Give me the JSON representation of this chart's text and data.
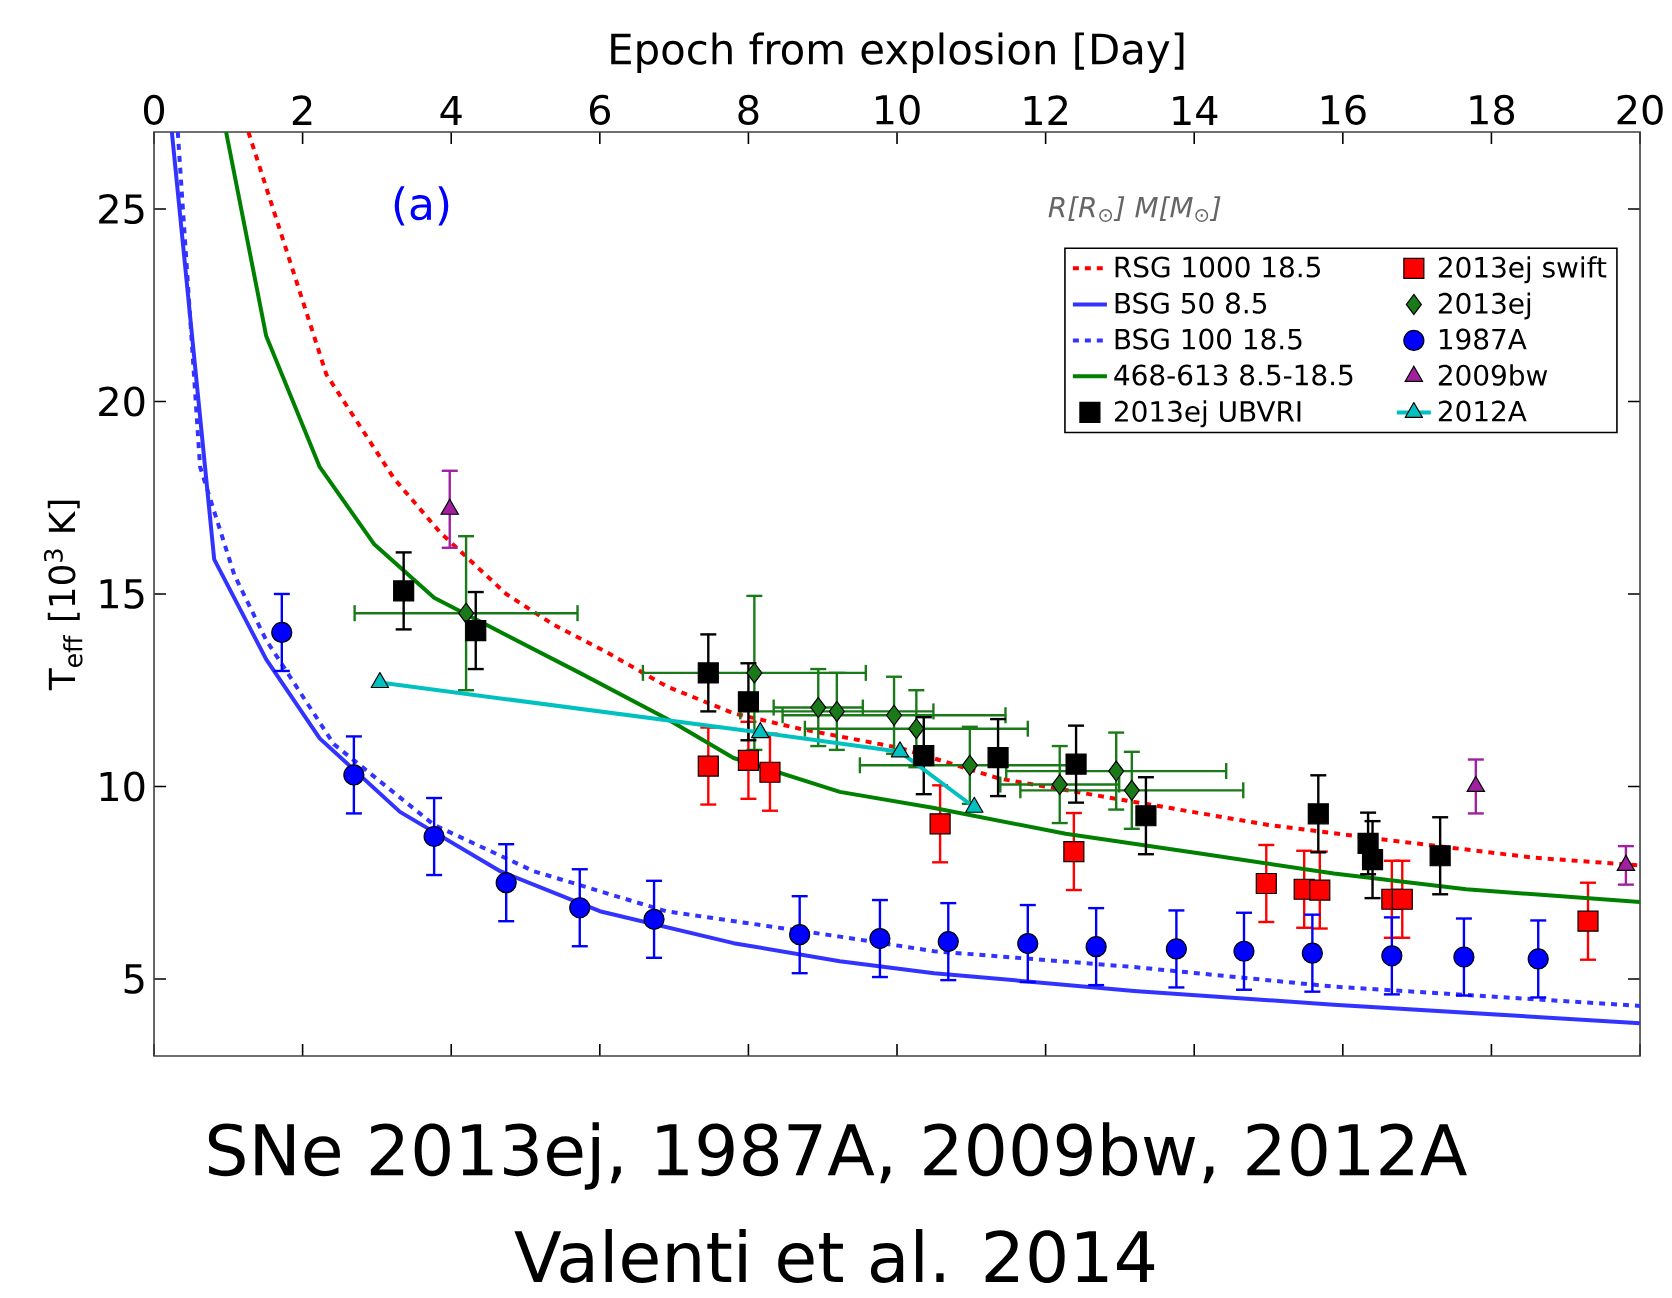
{
  "chart_data": {
    "type": "scatter",
    "xlabel": "Epoch from explosion [Day]",
    "ylabel": "T$_{eff}$  [10$^{3}$ K]",
    "legend_title": "R[R$_{⊙}$]   M[M$_{⊙}$]",
    "annotations": [
      "(a)",
      "SNe 2013ej, 1987A, 2009bw, 2012A",
      "Valenti et al. 2014"
    ],
    "xlim": [
      0,
      20
    ],
    "xticks": [
      0,
      2,
      4,
      6,
      8,
      10,
      12,
      14,
      16,
      18,
      20
    ],
    "ylim": [
      3,
      27
    ],
    "yticks": [
      5,
      10,
      15,
      20,
      25
    ],
    "legend": "top right",
    "grid": false,
    "series": [
      {
        "name": "RSG  1000  18.5",
        "type": "line",
        "color": "#ff0000",
        "line_style": "dashed",
        "marker": "none",
        "x": [
          1.27,
          2.32,
          3.23,
          3.85,
          4.74,
          5.38,
          6.08,
          6.9,
          7.8,
          8.69,
          10.04,
          11.39,
          13.19,
          15.0,
          16.77,
          18.57,
          20
        ],
        "values": [
          27,
          20.7,
          18.0,
          16.6,
          15.0,
          14.2,
          13.5,
          12.6,
          11.9,
          11.5,
          11.0,
          10.2,
          9.6,
          9.0,
          8.57,
          8.15,
          7.95
        ]
      },
      {
        "name": "2013ej swift",
        "color": "#ff0000",
        "marker": "square",
        "x": [
          7.46,
          8.0,
          8.29,
          10.58,
          12.38,
          14.97,
          15.48,
          15.69,
          16.66,
          16.8,
          19.3
        ],
        "values": [
          10.53,
          10.68,
          10.37,
          9.03,
          8.31,
          7.48,
          7.33,
          7.31,
          7.07,
          7.07,
          6.5
        ],
        "errors": [
          1,
          1,
          1,
          1,
          1,
          1,
          1,
          1,
          1,
          1,
          1
        ]
      },
      {
        "name": "BSG  50  8.5",
        "type": "line",
        "color": "#3333ff",
        "line_style": "solid",
        "marker": "none",
        "x": [
          0.24,
          0.81,
          1.51,
          2.23,
          3.31,
          4.66,
          6.0,
          7.8,
          9.23,
          10.5,
          13.19,
          15.88,
          20
        ],
        "values": [
          27,
          15.9,
          13.3,
          11.25,
          9.34,
          7.8,
          6.76,
          5.93,
          5.46,
          5.15,
          4.69,
          4.33,
          3.85
        ]
      },
      {
        "name": "2013ej",
        "color": "#1a7a1a",
        "marker": "diamond",
        "x": [
          4.2,
          8.08,
          8.94,
          9.19,
          9.96,
          10.26,
          10.98,
          12.19,
          12.95,
          13.16
        ],
        "values": [
          14.5,
          12.95,
          12.05,
          11.95,
          11.85,
          11.5,
          10.55,
          10.05,
          10.4,
          9.9
        ],
        "errors": [
          2,
          2,
          1,
          1,
          1,
          1,
          1,
          1,
          1,
          1
        ],
        "xerrors": [
          1.5,
          1.5,
          0.6,
          1.3,
          1.5,
          1.5,
          1.48,
          0.8,
          1.48,
          1.5
        ]
      },
      {
        "name": "BSG  100  18.5",
        "type": "line",
        "color": "#3333ff",
        "line_style": "dashed",
        "marker": "none",
        "x": [
          0.32,
          0.62,
          1.08,
          1.51,
          2.42,
          3.77,
          5.11,
          6.89,
          9.23,
          10.5,
          13.19,
          15.88,
          20
        ],
        "values": [
          27,
          18.3,
          15.5,
          13.8,
          11.1,
          9.0,
          7.8,
          6.76,
          6.1,
          5.72,
          5.31,
          4.8,
          4.3
        ]
      },
      {
        "name": "1987A",
        "color": "#0000ff",
        "marker": "circle",
        "x": [
          1.72,
          2.69,
          3.77,
          4.74,
          5.73,
          6.73,
          8.69,
          9.77,
          10.69,
          11.76,
          12.68,
          13.76,
          14.67,
          15.59,
          16.66,
          17.63,
          18.63
        ],
        "values": [
          14.0,
          10.3,
          8.7,
          7.5,
          6.85,
          6.55,
          6.15,
          6.05,
          5.97,
          5.92,
          5.84,
          5.78,
          5.72,
          5.67,
          5.6,
          5.57,
          5.52
        ],
        "errors": [
          1,
          1,
          1,
          1,
          1,
          1,
          1,
          1,
          1,
          1,
          1,
          1,
          1,
          1,
          1,
          1,
          1
        ]
      },
      {
        "name": "468-613  8.5-18.5",
        "type": "line",
        "color": "#008000",
        "line_style": "solid",
        "marker": "none",
        "x": [
          0.97,
          1.51,
          2.23,
          2.96,
          3.77,
          5.73,
          6.89,
          7.8,
          9.23,
          10.5,
          12.27,
          14.08,
          15.88,
          17.66,
          20
        ],
        "values": [
          27,
          21.7,
          18.3,
          16.3,
          14.9,
          12.95,
          11.77,
          10.74,
          9.86,
          9.44,
          8.77,
          8.26,
          7.74,
          7.33,
          7.0
        ]
      },
      {
        "name": "2009bw",
        "color": "#a020a0",
        "marker": "triangle",
        "x": [
          3.98,
          17.79,
          19.81
        ],
        "values": [
          17.2,
          10.0,
          7.95
        ],
        "errors": [
          1,
          0.7,
          0.5
        ]
      },
      {
        "name": "2013ej UBVRI",
        "color": "#000000",
        "marker": "square",
        "x": [
          3.36,
          4.33,
          7.46,
          8.0,
          10.36,
          11.36,
          12.41,
          13.35,
          15.67,
          16.34,
          16.4,
          17.31
        ],
        "values": [
          15.08,
          14.05,
          12.95,
          12.2,
          10.8,
          10.75,
          10.58,
          9.24,
          9.29,
          8.52,
          8.1,
          8.2
        ],
        "errors": [
          1,
          1,
          1,
          1,
          1,
          1,
          1,
          1,
          1,
          0.8,
          1,
          1
        ]
      },
      {
        "name": "2012A",
        "type": "line",
        "color": "#00c0c0",
        "line_style": "solid",
        "marker": "triangle",
        "x": [
          3.04,
          8.16,
          10.04,
          11.04
        ],
        "values": [
          12.7,
          11.4,
          10.9,
          9.46
        ]
      }
    ]
  }
}
